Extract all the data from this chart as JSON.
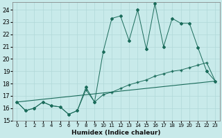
{
  "xlabel": "Humidex (Indice chaleur)",
  "bg_color": "#c8eaea",
  "grid_color": "#b0d8d8",
  "line_color": "#1a6b5a",
  "xlim": [
    -0.5,
    23.5
  ],
  "ylim": [
    15,
    24.6
  ],
  "yticks": [
    15,
    16,
    17,
    18,
    19,
    20,
    21,
    22,
    23,
    24
  ],
  "xtick_labels": [
    "0",
    "1",
    "2",
    "3",
    "4",
    "5",
    "6",
    "7",
    "8",
    "9",
    "10",
    "11",
    "12",
    "13",
    "14",
    "15",
    "16",
    "17",
    "18",
    "19",
    "20",
    "21",
    "22",
    "23"
  ],
  "series1_x": [
    0,
    1,
    2,
    3,
    4,
    5,
    6,
    7,
    8,
    9,
    10,
    11,
    12,
    13,
    14,
    15,
    16,
    17,
    18,
    19,
    20,
    21,
    22,
    23
  ],
  "series1_y": [
    16.5,
    15.8,
    16.0,
    16.5,
    16.2,
    16.1,
    15.5,
    15.8,
    17.7,
    16.5,
    20.6,
    23.3,
    23.5,
    21.5,
    24.0,
    20.8,
    24.5,
    21.0,
    23.3,
    22.9,
    22.9,
    20.9,
    19.0,
    18.2
  ],
  "series2_x": [
    0,
    1,
    2,
    3,
    4,
    5,
    6,
    7,
    8,
    9,
    10,
    11,
    12,
    13,
    14,
    15,
    16,
    17,
    18,
    19,
    20,
    21,
    22,
    23
  ],
  "series2_y": [
    16.5,
    15.8,
    16.0,
    16.5,
    16.2,
    16.1,
    15.5,
    15.8,
    17.5,
    16.5,
    17.1,
    17.3,
    17.6,
    17.9,
    18.1,
    18.3,
    18.6,
    18.8,
    19.0,
    19.1,
    19.3,
    19.5,
    19.7,
    18.2
  ],
  "series3_x": [
    0,
    23
  ],
  "series3_y": [
    16.5,
    18.2
  ]
}
